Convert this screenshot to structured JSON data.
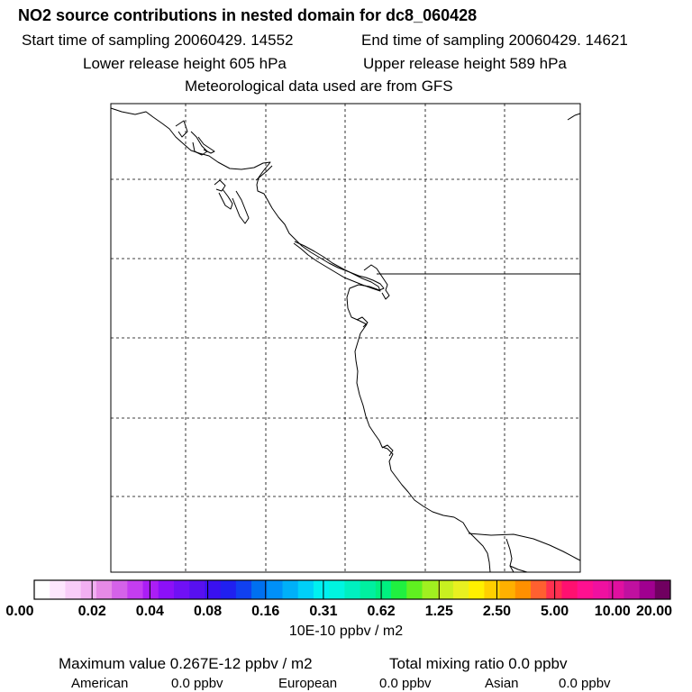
{
  "header": {
    "title": "NO2 source contributions in nested domain for dc8_060428",
    "start_time": "Start time of sampling 20060429. 14552",
    "end_time": "End time of sampling 20060429. 14621",
    "lower_height": "Lower release height  605 hPa",
    "upper_height": "Upper release height  589 hPa",
    "met_data": "Meteorological data used are from GFS"
  },
  "colorbar": {
    "colors": [
      "#ffffff",
      "#fde6fd",
      "#f8cdf8",
      "#f2b0f2",
      "#e68ae6",
      "#d562e9",
      "#c43df0",
      "#ab1ef5",
      "#8c10f8",
      "#7010f5",
      "#5810f0",
      "#3a10f0",
      "#2020f0",
      "#1040f0",
      "#0070f0",
      "#0090f8",
      "#00b0f8",
      "#00d0f8",
      "#00f0f0",
      "#00f5e0",
      "#00f0c0",
      "#00f0a0",
      "#00f080",
      "#20f040",
      "#60f020",
      "#a0f020",
      "#c8f020",
      "#e8f020",
      "#fff000",
      "#ffd000",
      "#ffb000",
      "#ff9000",
      "#ff6030",
      "#ff3050",
      "#ff1070",
      "#ff1090",
      "#f010a0",
      "#e010a0",
      "#c010a0",
      "#a00090",
      "#700060"
    ],
    "tick_labels": [
      "0.00",
      "0.02",
      "0.04",
      "0.08",
      "0.16",
      "0.31",
      "0.62",
      "1.25",
      "2.50",
      "5.00",
      "10.00",
      "20.00"
    ],
    "units": "10E-10 ppbv / m2"
  },
  "stats": {
    "max_value": "Maximum value  0.267E-12 ppbv / m2",
    "total_mixing": "Total mixing ratio       0.0 ppbv"
  },
  "contributions": [
    {
      "label": "American",
      "value": "0.0 ppbv"
    },
    {
      "label": "European",
      "value": "0.0 ppbv"
    },
    {
      "label": "Asian",
      "value": "0.0 ppbv"
    }
  ]
}
